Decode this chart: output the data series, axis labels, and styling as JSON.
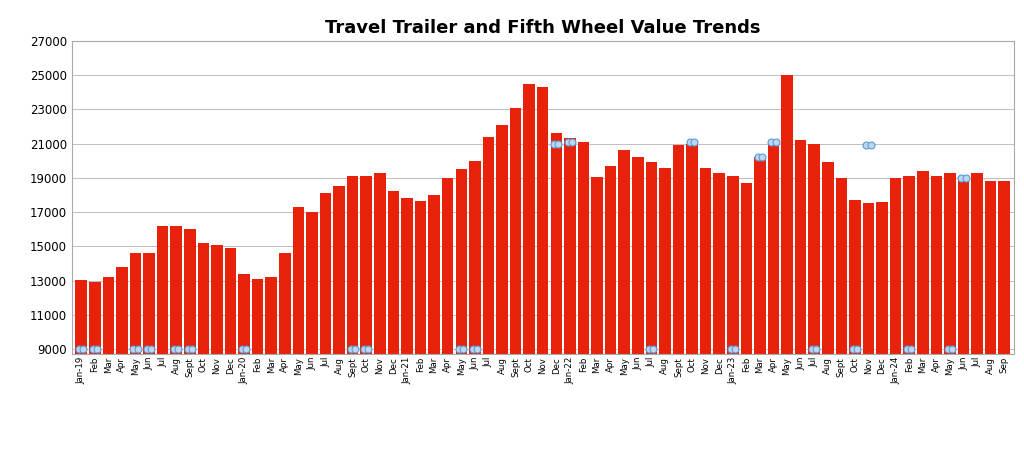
{
  "title": "Travel Trailer and Fifth Wheel Value Trends",
  "bar_color": "#E8220A",
  "background_color": "#FFFFFF",
  "grid_color": "#C0C0C0",
  "ylim": [
    8700,
    27000
  ],
  "yticks": [
    9000,
    11000,
    13000,
    15000,
    17000,
    19000,
    21000,
    23000,
    25000,
    27000
  ],
  "labels": [
    "Jan-19",
    "Feb",
    "Mar",
    "Apr",
    "May",
    "Jun",
    "Jul",
    "Aug",
    "Sept",
    "Oct",
    "Nov",
    "Dec",
    "Jan-20",
    "Feb",
    "Mar",
    "Apr",
    "May",
    "Jun",
    "Jul",
    "Aug",
    "Sept",
    "Oct",
    "Nov",
    "Dec",
    "Jan-21",
    "Feb",
    "Mar",
    "Apr",
    "May",
    "Jun",
    "Jul",
    "Aug",
    "Sept",
    "Oct",
    "Nov",
    "Dec",
    "Jan-22",
    "Feb",
    "Mar",
    "Apr",
    "May",
    "Jun",
    "Jul",
    "Aug",
    "Sept",
    "Oct",
    "Nov",
    "Dec",
    "Jan-23",
    "Feb",
    "Mar",
    "Apr",
    "May",
    "Jun",
    "Jul",
    "Aug",
    "Sept",
    "Oct",
    "Nov",
    "Dec",
    "Jan-24",
    "Feb",
    "Mar",
    "Apr",
    "May",
    "Jun",
    "Jul",
    "Aug",
    "Sep"
  ],
  "values": [
    13050,
    12900,
    13200,
    13800,
    14600,
    14600,
    16200,
    16200,
    16000,
    15200,
    15100,
    14900,
    13400,
    13100,
    13200,
    14600,
    17300,
    17000,
    18100,
    18500,
    19100,
    19100,
    19300,
    18200,
    17800,
    17650,
    18000,
    19000,
    19500,
    20000,
    21400,
    22100,
    23100,
    24500,
    24300,
    21600,
    21300,
    21100,
    19050,
    19700,
    20600,
    20200,
    19900,
    19600,
    20900,
    21000,
    19600,
    19300,
    19100,
    18700,
    20200,
    21100,
    25000,
    21200,
    21000,
    19900,
    19000,
    17700,
    17500,
    17600,
    19000,
    19100,
    19400,
    19100,
    19300,
    19100,
    19300,
    18800,
    18800
  ],
  "dot_indices": [
    0,
    1,
    4,
    5,
    7,
    8,
    12,
    20,
    21,
    28,
    29,
    35,
    36,
    42,
    45,
    48,
    50,
    51,
    54,
    57,
    58,
    61,
    64,
    65
  ],
  "dot_values": [
    9000,
    9000,
    9000,
    9000,
    9000,
    9000,
    9000,
    9000,
    9000,
    9000,
    9000,
    21000,
    21100,
    9000,
    21100,
    9000,
    20200,
    21100,
    9000,
    9000,
    20900,
    9000,
    9000,
    19000
  ]
}
